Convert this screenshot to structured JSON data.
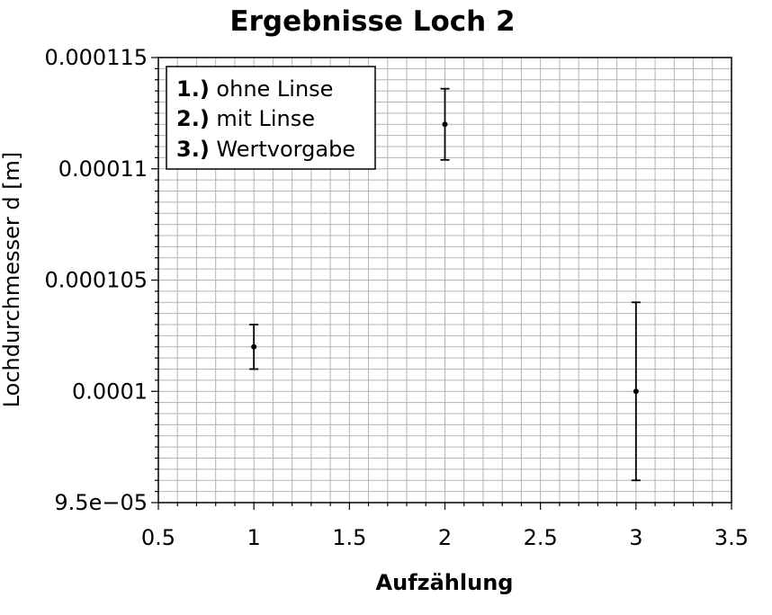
{
  "chart_data": {
    "type": "scatter",
    "title": "Ergebnisse Loch 2",
    "xlabel": "Aufzählung",
    "ylabel": "Lochdurchmesser d [m]",
    "xlim": [
      0.5,
      3.5
    ],
    "ylim": [
      9.5e-05,
      0.000115
    ],
    "xticks": [
      0.5,
      1,
      1.5,
      2,
      2.5,
      3,
      3.5
    ],
    "xtick_labels": [
      "0.5",
      "1",
      "1.5",
      "2",
      "2.5",
      "3",
      "3.5"
    ],
    "yticks": [
      9.5e-05,
      0.0001,
      0.000105,
      0.00011,
      0.000115
    ],
    "ytick_labels": [
      "9.5e−05",
      "0.0001",
      "0.000105",
      "0.00011",
      "0.000115"
    ],
    "grid": true,
    "legend_position": "top-left",
    "legend": [
      {
        "num": "1.)",
        "text": " ohne Linse"
      },
      {
        "num": "2.)",
        "text": " mit Linse"
      },
      {
        "num": "3.)",
        "text": " Wertvorgabe"
      }
    ],
    "series": [
      {
        "x": [
          1,
          2,
          3
        ],
        "y": [
          0.000102,
          0.000112,
          0.0001
        ],
        "err_low": [
          0.000101,
          0.0001104,
          9.6e-05
        ],
        "err_high": [
          0.000103,
          0.0001136,
          0.000104
        ]
      }
    ],
    "colors": {
      "marks": "#000000",
      "grid": "#b3b3b3",
      "background": "#ffffff"
    }
  }
}
